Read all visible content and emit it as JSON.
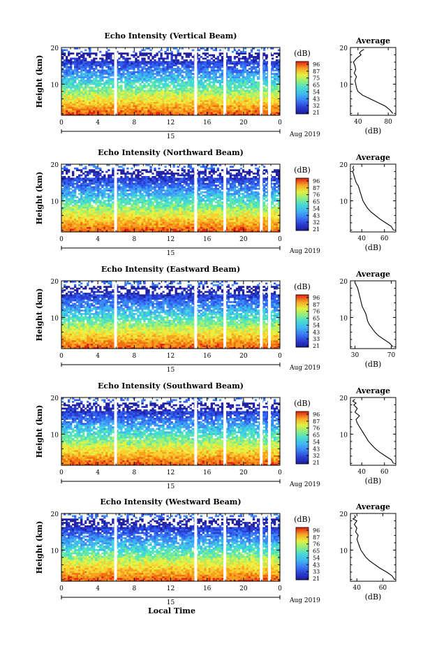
{
  "panels": [
    {
      "title": "Echo Intensity (Vertical Beam)",
      "ylabel": "Height (km)",
      "x_ticks": [
        "0",
        "4",
        "8",
        "12",
        "16",
        "20",
        "0"
      ],
      "date_day": "15",
      "date_tail": "Aug 2019",
      "colorbar_unit": "(dB)",
      "colorbar_ticks": [
        "96",
        "87",
        "75",
        "65",
        "54",
        "43",
        "32",
        "21"
      ],
      "avg_title": "Average",
      "avg_xlabel": "(dB)",
      "avg_xticks": [
        "40",
        "80"
      ],
      "y_ticks": [
        "10",
        "20"
      ]
    },
    {
      "title": "Echo Intensity (Northward Beam)",
      "ylabel": "Height (km)",
      "x_ticks": [
        "0",
        "4",
        "8",
        "12",
        "16",
        "20",
        "0"
      ],
      "date_day": "15",
      "date_tail": "Aug 2019",
      "colorbar_unit": "(dB)",
      "colorbar_ticks": [
        "96",
        "87",
        "76",
        "65",
        "54",
        "43",
        "32",
        "21"
      ],
      "avg_title": "Average",
      "avg_xlabel": "(dB)",
      "avg_xticks": [
        "40",
        "60"
      ],
      "y_ticks": [
        "10",
        "20"
      ]
    },
    {
      "title": "Echo Intensity (Eastward Beam)",
      "ylabel": "Height (km)",
      "x_ticks": [
        "0",
        "4",
        "8",
        "12",
        "16",
        "20",
        "0"
      ],
      "date_day": "15",
      "date_tail": "Aug 2019",
      "colorbar_unit": "(dB)",
      "colorbar_ticks": [
        "96",
        "87",
        "76",
        "65",
        "54",
        "43",
        "33",
        "21"
      ],
      "avg_title": "Average",
      "avg_xlabel": "(dB)",
      "avg_xticks": [
        "30",
        "70"
      ],
      "y_ticks": [
        "10",
        "20"
      ]
    },
    {
      "title": "Echo Intensity (Southward Beam)",
      "ylabel": "Height (km)",
      "x_ticks": [
        "0",
        "4",
        "8",
        "12",
        "16",
        "20",
        "0"
      ],
      "date_day": "15",
      "date_tail": "Aug 2019",
      "colorbar_unit": "(dB)",
      "colorbar_ticks": [
        "96",
        "87",
        "76",
        "65",
        "54",
        "43",
        "32",
        "21"
      ],
      "avg_title": "Average",
      "avg_xlabel": "(dB)",
      "avg_xticks": [
        "40",
        "60"
      ],
      "y_ticks": [
        "10",
        "20"
      ]
    },
    {
      "title": "Echo Intensity (Westward Beam)",
      "ylabel": "Height (km)",
      "x_ticks": [
        "0",
        "4",
        "8",
        "12",
        "16",
        "20",
        "0"
      ],
      "date_day": "15",
      "date_tail": "Aug 2019",
      "colorbar_unit": "(dB)",
      "colorbar_ticks": [
        "96",
        "87",
        "76",
        "65",
        "54",
        "43",
        "33",
        "21"
      ],
      "avg_title": "Average",
      "avg_xlabel": "(dB)",
      "avg_xticks": [
        "40",
        "60"
      ],
      "y_ticks": [
        "10",
        "20"
      ]
    }
  ],
  "bottom_xlabel": "Local Time",
  "chart_data": [
    {
      "type": "heatmap",
      "title": "Echo Intensity (Vertical Beam)",
      "xlabel": "",
      "ylabel": "Height (km)",
      "xlim": [
        0,
        24
      ],
      "ylim": [
        1.5,
        20
      ],
      "colorbar": {
        "label": "(dB)",
        "range": [
          21,
          96
        ]
      },
      "data_gaps_hours": [
        5.8,
        14.6,
        17.8,
        21.8,
        22.7
      ],
      "intensity_by_height": {
        "height_km": [
          2,
          4,
          6,
          8,
          10,
          12,
          14,
          16,
          18,
          20
        ],
        "db": [
          68,
          58,
          52,
          46,
          40,
          33,
          28,
          26,
          24,
          0
        ]
      }
    },
    {
      "type": "line",
      "title": "Average",
      "xlabel": "(dB)",
      "ylabel": "",
      "xlim": [
        30,
        90
      ],
      "ylim": [
        1.5,
        20
      ],
      "series": [
        {
          "x": [
            86,
            82,
            76,
            66,
            56,
            46,
            40,
            38,
            37,
            36,
            38,
            35,
            37,
            36,
            34,
            38,
            44,
            42,
            44,
            48
          ],
          "y": [
            2,
            3,
            4,
            5,
            6,
            7,
            8,
            9,
            10,
            11,
            12,
            13,
            14,
            15,
            16,
            17,
            18,
            18.5,
            19,
            19.5
          ]
        }
      ]
    },
    {
      "type": "heatmap",
      "title": "Echo Intensity (Northward Beam)",
      "xlabel": "",
      "ylabel": "Height (km)",
      "xlim": [
        0,
        24
      ],
      "ylim": [
        1.5,
        20
      ],
      "colorbar": {
        "label": "(dB)",
        "range": [
          21,
          96
        ]
      },
      "data_gaps_hours": [
        5.8,
        14.6,
        17.8,
        21.8,
        22.7
      ]
    },
    {
      "type": "line",
      "title": "Average",
      "xlabel": "(dB)",
      "ylabel": "",
      "xlim": [
        30,
        70
      ],
      "ylim": [
        1.5,
        20
      ],
      "series": [
        {
          "x": [
            68,
            66,
            61,
            56,
            52,
            48,
            45,
            43,
            41,
            40,
            39,
            38,
            37,
            35,
            34,
            33,
            32,
            33,
            32,
            33
          ],
          "y": [
            2,
            3,
            4,
            5,
            6,
            7,
            8,
            9,
            10,
            11,
            12,
            13,
            14,
            15,
            16,
            17,
            18,
            18.5,
            19,
            19.5
          ]
        }
      ]
    },
    {
      "type": "heatmap",
      "title": "Echo Intensity (Eastward Beam)",
      "xlabel": "",
      "ylabel": "Height (km)",
      "xlim": [
        0,
        24
      ],
      "ylim": [
        1.5,
        20
      ],
      "colorbar": {
        "label": "(dB)",
        "range": [
          21,
          96
        ]
      },
      "data_gaps_hours": [
        5.8,
        14.6,
        17.8,
        21.8,
        22.7
      ]
    },
    {
      "type": "line",
      "title": "Average",
      "xlabel": "(dB)",
      "ylabel": "",
      "xlim": [
        25,
        75
      ],
      "ylim": [
        1.5,
        20
      ],
      "series": [
        {
          "x": [
            72,
            68,
            62,
            56,
            52,
            49,
            46,
            44,
            43,
            42,
            40,
            38,
            37,
            36,
            35,
            34,
            33,
            32,
            31,
            30
          ],
          "y": [
            2,
            3,
            4,
            5,
            6,
            7,
            8,
            9,
            10,
            11,
            12,
            13,
            14,
            15,
            16,
            17,
            18,
            18.5,
            19,
            19.5
          ]
        }
      ]
    },
    {
      "type": "heatmap",
      "title": "Echo Intensity (Southward Beam)",
      "xlabel": "",
      "ylabel": "Height (km)",
      "xlim": [
        0,
        24
      ],
      "ylim": [
        1.5,
        20
      ],
      "colorbar": {
        "label": "(dB)",
        "range": [
          21,
          96
        ]
      },
      "data_gaps_hours": [
        5.8,
        14.6,
        17.8,
        21.8,
        22.7
      ]
    },
    {
      "type": "line",
      "title": "Average",
      "xlabel": "(dB)",
      "ylabel": "",
      "xlim": [
        30,
        70
      ],
      "ylim": [
        1.5,
        20
      ],
      "series": [
        {
          "x": [
            68,
            66,
            61,
            56,
            52,
            49,
            46,
            44,
            42,
            40,
            38,
            36,
            35,
            38,
            34,
            36,
            33,
            35,
            32,
            34
          ],
          "y": [
            2,
            3,
            4,
            5,
            6,
            7,
            8,
            9,
            10,
            11,
            12,
            13,
            14,
            15,
            16,
            17,
            18,
            18.5,
            19,
            19.5
          ]
        }
      ]
    },
    {
      "type": "heatmap",
      "title": "Echo Intensity (Westward Beam)",
      "xlabel": "Local Time",
      "ylabel": "Height (km)",
      "xlim": [
        0,
        24
      ],
      "ylim": [
        1.5,
        20
      ],
      "colorbar": {
        "label": "(dB)",
        "range": [
          21,
          96
        ]
      },
      "data_gaps_hours": [
        5.8,
        14.6,
        17.8,
        21.8,
        22.7
      ]
    },
    {
      "type": "line",
      "title": "Average",
      "xlabel": "(dB)",
      "ylabel": "",
      "xlim": [
        35,
        70
      ],
      "ylim": [
        1.5,
        20
      ],
      "series": [
        {
          "x": [
            69,
            67,
            63,
            58,
            54,
            50,
            47,
            45,
            43,
            42,
            41,
            40,
            41,
            39,
            40,
            38,
            40,
            37,
            39,
            38
          ],
          "y": [
            2,
            3,
            4,
            5,
            6,
            7,
            8,
            9,
            10,
            11,
            12,
            13,
            14,
            15,
            16,
            17,
            18,
            18.5,
            19,
            19.5
          ]
        }
      ]
    }
  ],
  "colormap": [
    "#2020a0",
    "#2a3cd0",
    "#3060f0",
    "#3c8cf4",
    "#40b4f0",
    "#40d8d8",
    "#60e8a8",
    "#a8f070",
    "#e8f040",
    "#f8d030",
    "#f8a020",
    "#f07010",
    "#e02010"
  ]
}
